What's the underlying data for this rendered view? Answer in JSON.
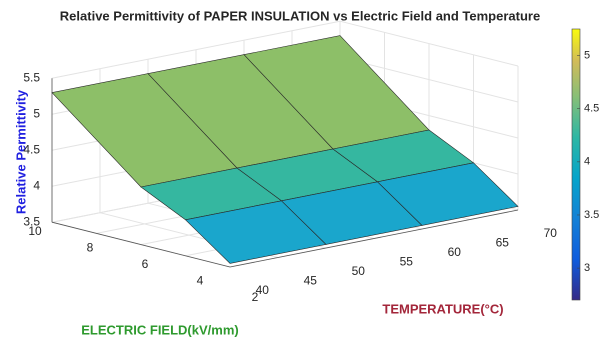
{
  "chart_data": {
    "type": "surface",
    "title": "Relative Permittivity of PAPER INSULATION vs Electric Field and Temperature",
    "xlabel": "TEMPERATURE(°C)",
    "ylabel": "ELECTRIC FIELD(kV/mm)",
    "zlabel": "Relative Permittivity",
    "x": [
      40,
      50,
      60,
      70
    ],
    "y": [
      2,
      4,
      6,
      10
    ],
    "z": [
      [
        3.55,
        3.55,
        3.55,
        3.55
      ],
      [
        4.0,
        4.0,
        4.0,
        4.0
      ],
      [
        4.3,
        4.3,
        4.3,
        4.3
      ],
      [
        5.3,
        5.3,
        5.3,
        5.3
      ]
    ],
    "band_colors": [
      "#1aa6cc",
      "#35b7a0",
      "#8dbf68"
    ],
    "xlim": [
      40,
      70
    ],
    "ylim": [
      2,
      10
    ],
    "zlim": [
      3.5,
      5.5
    ],
    "xticks": [
      40,
      45,
      50,
      55,
      60,
      65,
      70
    ],
    "yticks": [
      2,
      4,
      6,
      8,
      10
    ],
    "zticks": [
      3.5,
      4,
      4.5,
      5,
      5.5
    ],
    "grid": true,
    "colorbar": {
      "lim": [
        2.7,
        5.25
      ],
      "ticks": [
        3,
        3.5,
        4,
        4.5,
        5
      ]
    }
  }
}
